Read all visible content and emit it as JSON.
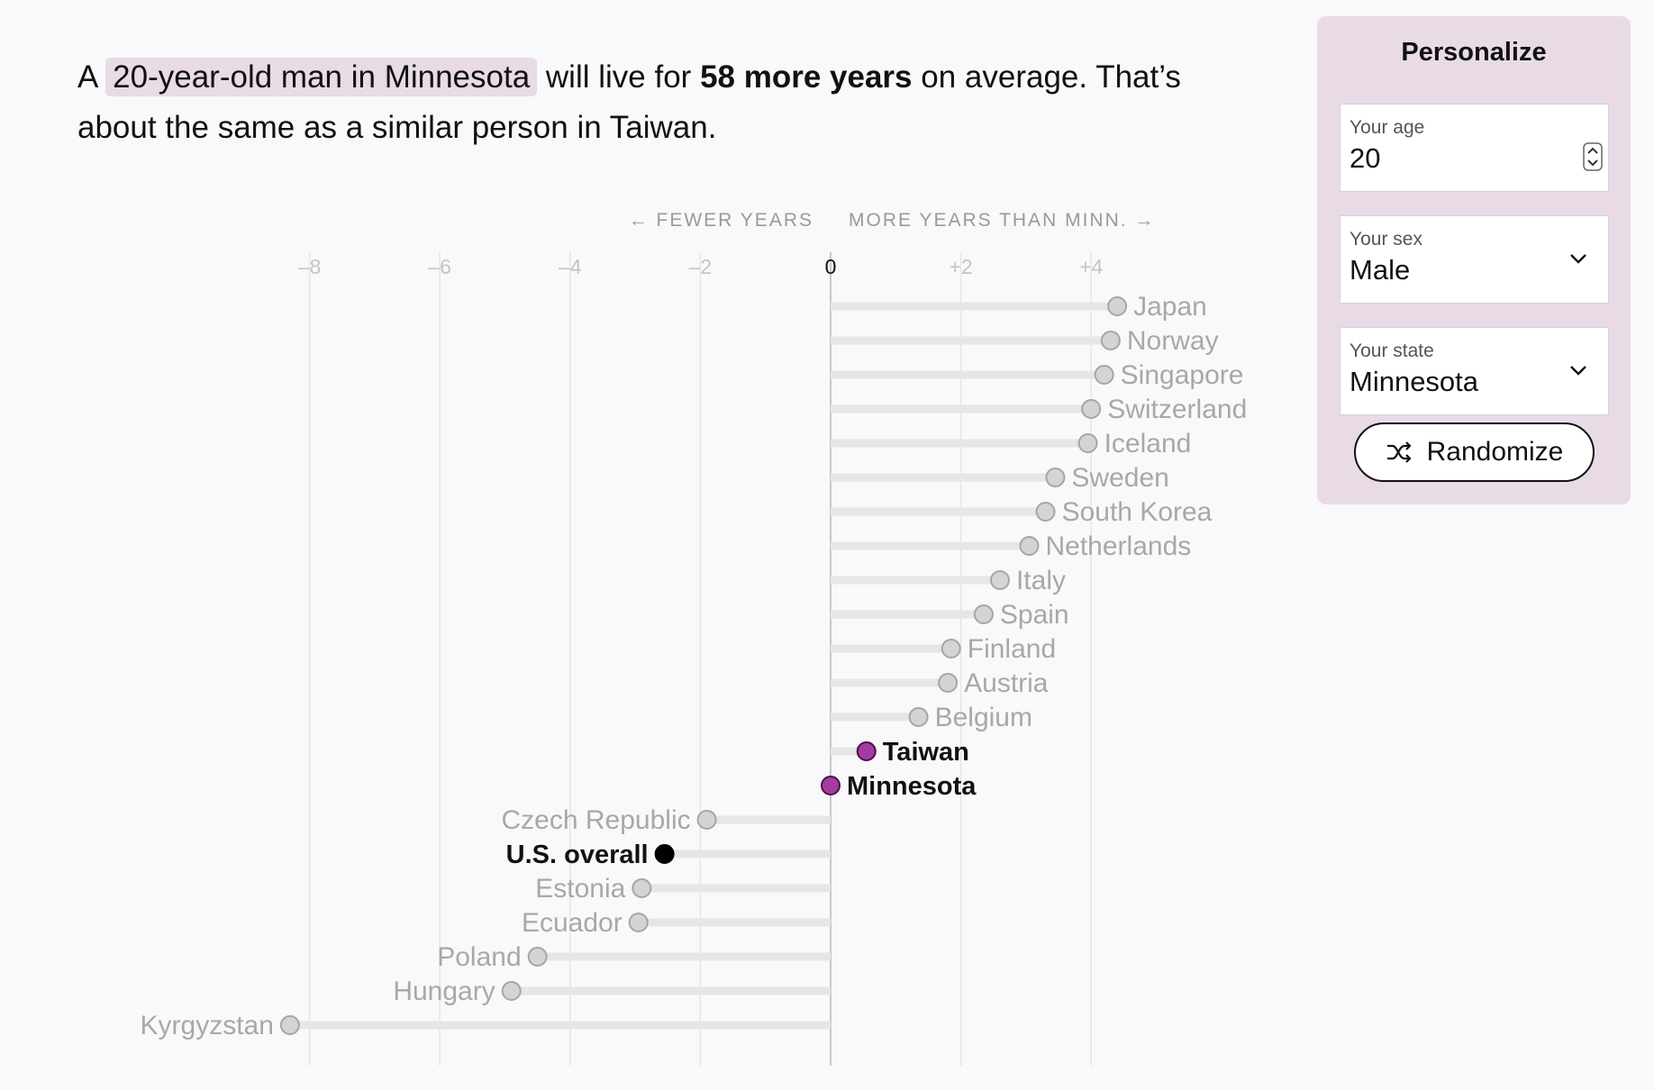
{
  "summary": {
    "prefix": "A",
    "subject": "20-year-old man in Minnesota",
    "middle": "will live for",
    "years": "58 more years",
    "suffix": "on average. That’s about the same as a similar person in Taiwan."
  },
  "personalize": {
    "title": "Personalize",
    "age_label": "Your age",
    "age_value": "20",
    "sex_label": "Your sex",
    "sex_value": "Male",
    "state_label": "Your state",
    "state_value": "Minnesota",
    "randomize_label": "Randomize"
  },
  "icons": {
    "shuffle": "shuffle-icon",
    "chevron": "chevron-down-icon",
    "spinner": "spinner-icon"
  },
  "colors": {
    "highlight_dot": "#a33ca0",
    "us_dot": "#000000",
    "other_dot": "#d4d4d4",
    "panel_bg": "#e8dbe6",
    "chip_bg": "#e8dbe4"
  },
  "chart_data": {
    "type": "lollipop",
    "direction_labels": [
      "← FEWER YEARS",
      "MORE YEARS THAN MINN. →"
    ],
    "xlim": [
      -8.1,
      4.9
    ],
    "ticks": [
      -8,
      -6,
      -4,
      -2,
      0,
      2,
      4
    ],
    "tick_labels": [
      "–8",
      "–6",
      "–4",
      "–2",
      "0",
      "+2",
      "+4"
    ],
    "grid": true,
    "points": [
      {
        "label": "Japan",
        "value": 4.4,
        "style": "other"
      },
      {
        "label": "Norway",
        "value": 4.3,
        "style": "other"
      },
      {
        "label": "Singapore",
        "value": 4.2,
        "style": "other"
      },
      {
        "label": "Switzerland",
        "value": 4.0,
        "style": "other"
      },
      {
        "label": "Iceland",
        "value": 3.95,
        "style": "other"
      },
      {
        "label": "Sweden",
        "value": 3.45,
        "style": "other"
      },
      {
        "label": "South Korea",
        "value": 3.3,
        "style": "other"
      },
      {
        "label": "Netherlands",
        "value": 3.05,
        "style": "other"
      },
      {
        "label": "Italy",
        "value": 2.6,
        "style": "other"
      },
      {
        "label": "Spain",
        "value": 2.35,
        "style": "other"
      },
      {
        "label": "Finland",
        "value": 1.85,
        "style": "other"
      },
      {
        "label": "Austria",
        "value": 1.8,
        "style": "other"
      },
      {
        "label": "Belgium",
        "value": 1.35,
        "style": "other"
      },
      {
        "label": "Taiwan",
        "value": 0.55,
        "style": "highlight"
      },
      {
        "label": "Minnesota",
        "value": 0,
        "style": "highlight"
      },
      {
        "label": "Czech Republic",
        "value": -1.9,
        "style": "other"
      },
      {
        "label": "U.S. overall",
        "value": -2.55,
        "style": "us"
      },
      {
        "label": "Estonia",
        "value": -2.9,
        "style": "other"
      },
      {
        "label": "Ecuador",
        "value": -2.95,
        "style": "other"
      },
      {
        "label": "Poland",
        "value": -4.5,
        "style": "other"
      },
      {
        "label": "Hungary",
        "value": -4.9,
        "style": "other"
      },
      {
        "label": "Kyrgyzstan",
        "value": -8.3,
        "style": "other"
      }
    ]
  }
}
